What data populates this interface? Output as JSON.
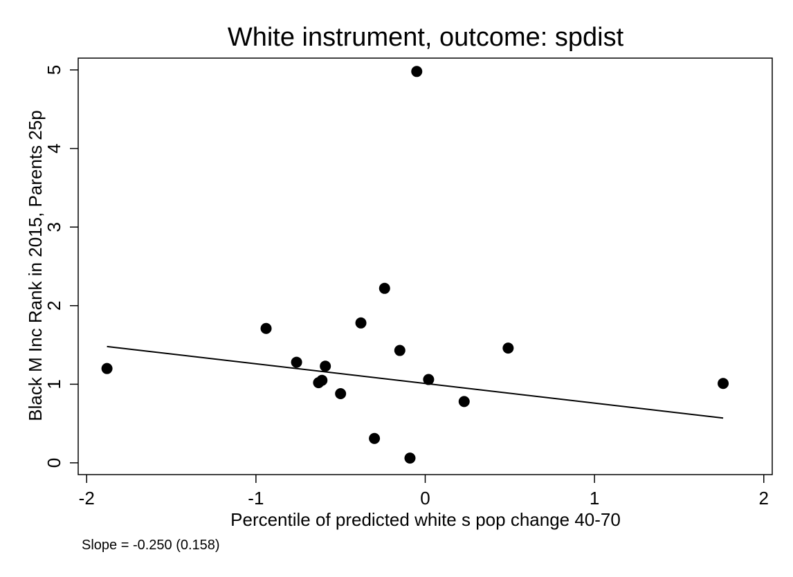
{
  "chart_data": {
    "type": "scatter",
    "title": "White instrument, outcome: spdist",
    "xlabel": "Percentile of predicted white s pop change 40-70",
    "ylabel": "Black M Inc Rank in 2015, Parents 25p",
    "note": "Slope = -0.250 (0.158)",
    "xlim": [
      -2.05,
      2.05
    ],
    "ylim": [
      -0.15,
      5.15
    ],
    "xticks": [
      -2,
      -1,
      0,
      1,
      2
    ],
    "xtick_labels": [
      "-2",
      "-1",
      "0",
      "1",
      "2"
    ],
    "yticks": [
      0,
      1,
      2,
      3,
      4,
      5
    ],
    "ytick_labels": [
      "0",
      "1",
      "2",
      "3",
      "4",
      "5"
    ],
    "grid": false,
    "legend": "none",
    "point_color": "#000000",
    "line_color": "#000000",
    "points": [
      {
        "x": -1.88,
        "y": 1.2
      },
      {
        "x": -0.94,
        "y": 1.71
      },
      {
        "x": -0.76,
        "y": 1.28
      },
      {
        "x": -0.63,
        "y": 1.02
      },
      {
        "x": -0.61,
        "y": 1.05
      },
      {
        "x": -0.59,
        "y": 1.23
      },
      {
        "x": -0.5,
        "y": 0.88
      },
      {
        "x": -0.38,
        "y": 1.78
      },
      {
        "x": -0.3,
        "y": 0.31
      },
      {
        "x": -0.24,
        "y": 2.22
      },
      {
        "x": -0.15,
        "y": 1.43
      },
      {
        "x": -0.09,
        "y": 0.06
      },
      {
        "x": -0.05,
        "y": 4.98
      },
      {
        "x": 0.02,
        "y": 1.06
      },
      {
        "x": 0.23,
        "y": 0.78
      },
      {
        "x": 0.49,
        "y": 1.46
      },
      {
        "x": 1.76,
        "y": 1.01
      }
    ],
    "fit_line": {
      "x": [
        -1.88,
        1.76
      ],
      "y": [
        1.48,
        0.57
      ]
    }
  }
}
